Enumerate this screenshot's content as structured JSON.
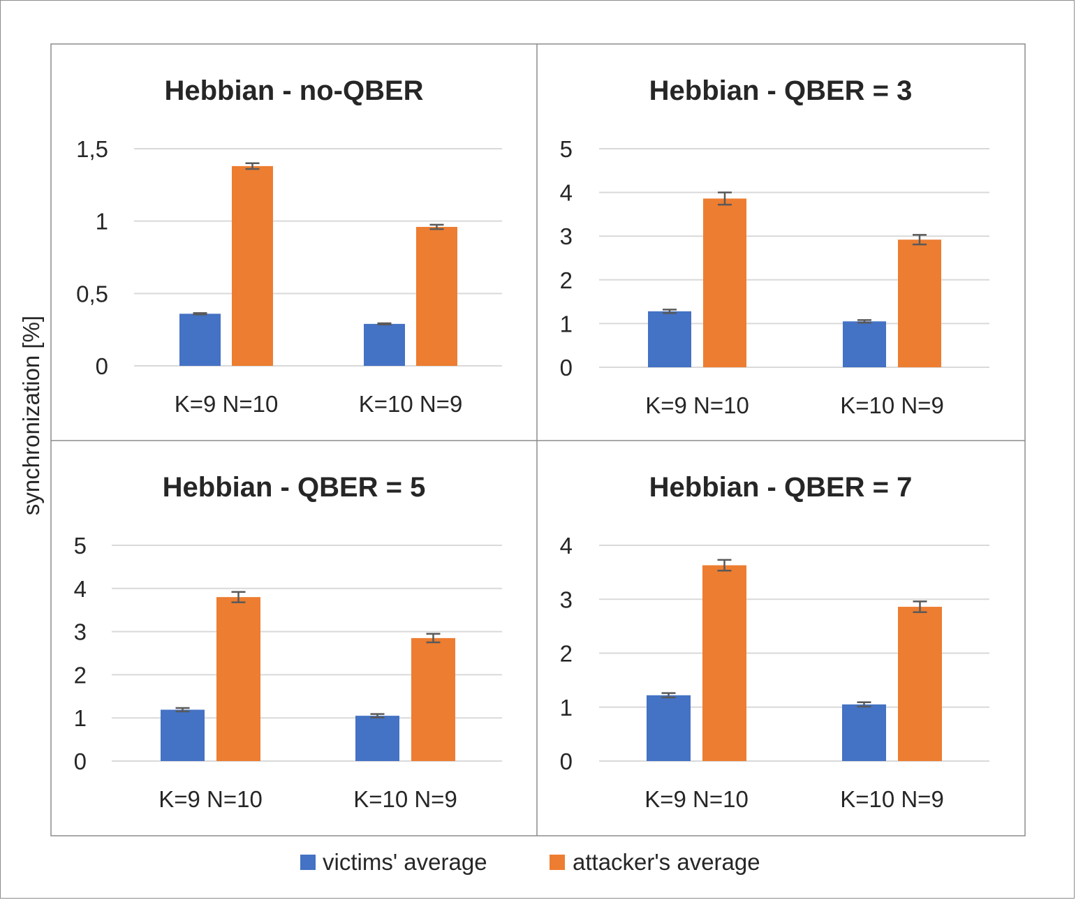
{
  "chart_data": {
    "type": "bar",
    "ylabel": "synchronization [%]",
    "legend_position": "bottom",
    "grid": true,
    "series_colors": [
      "#4472c4",
      "#ed7d31"
    ],
    "error_bar_color": "#595959",
    "legend": [
      {
        "name": "victims' average",
        "color": "#4472c4"
      },
      {
        "name": "attacker's average",
        "color": "#ed7d31"
      }
    ],
    "panels": [
      {
        "title": "Hebbian - no-QBER",
        "categories": [
          "K=9 N=10",
          "K=10 N=9"
        ],
        "ylim": [
          0,
          1.5
        ],
        "yticks": [
          0,
          0.5,
          1,
          1.5
        ],
        "ytick_labels": [
          "0",
          "0,5",
          "1",
          "1,5"
        ],
        "series": [
          {
            "name": "victims' average",
            "values": [
              0.36,
              0.29
            ],
            "errors": [
              0.005,
              0.004
            ]
          },
          {
            "name": "attacker's average",
            "values": [
              1.38,
              0.96
            ],
            "errors": [
              0.02,
              0.015
            ]
          }
        ]
      },
      {
        "title": "Hebbian - QBER = 3",
        "categories": [
          "K=9 N=10",
          "K=10 N=9"
        ],
        "ylim": [
          0,
          5
        ],
        "yticks": [
          0,
          1,
          2,
          3,
          4,
          5
        ],
        "ytick_labels": [
          "0",
          "1",
          "2",
          "3",
          "4",
          "5"
        ],
        "series": [
          {
            "name": "victims' average",
            "values": [
              1.28,
              1.05
            ],
            "errors": [
              0.04,
              0.03
            ]
          },
          {
            "name": "attacker's average",
            "values": [
              3.86,
              2.92
            ],
            "errors": [
              0.14,
              0.11
            ]
          }
        ]
      },
      {
        "title": "Hebbian - QBER = 5",
        "categories": [
          "K=9 N=10",
          "K=10 N=9"
        ],
        "ylim": [
          0,
          5
        ],
        "yticks": [
          0,
          1,
          2,
          3,
          4,
          5
        ],
        "ytick_labels": [
          "0",
          "1",
          "2",
          "3",
          "4",
          "5"
        ],
        "series": [
          {
            "name": "victims' average",
            "values": [
              1.19,
              1.05
            ],
            "errors": [
              0.04,
              0.04
            ]
          },
          {
            "name": "attacker's average",
            "values": [
              3.8,
              2.85
            ],
            "errors": [
              0.12,
              0.1
            ]
          }
        ]
      },
      {
        "title": "Hebbian - QBER = 7",
        "categories": [
          "K=9 N=10",
          "K=10 N=9"
        ],
        "ylim": [
          0,
          4
        ],
        "yticks": [
          0,
          1,
          2,
          3,
          4
        ],
        "ytick_labels": [
          "0",
          "1",
          "2",
          "3",
          "4"
        ],
        "series": [
          {
            "name": "victims' average",
            "values": [
              1.22,
              1.05
            ],
            "errors": [
              0.04,
              0.04
            ]
          },
          {
            "name": "attacker's average",
            "values": [
              3.63,
              2.86
            ],
            "errors": [
              0.1,
              0.1
            ]
          }
        ]
      }
    ]
  }
}
